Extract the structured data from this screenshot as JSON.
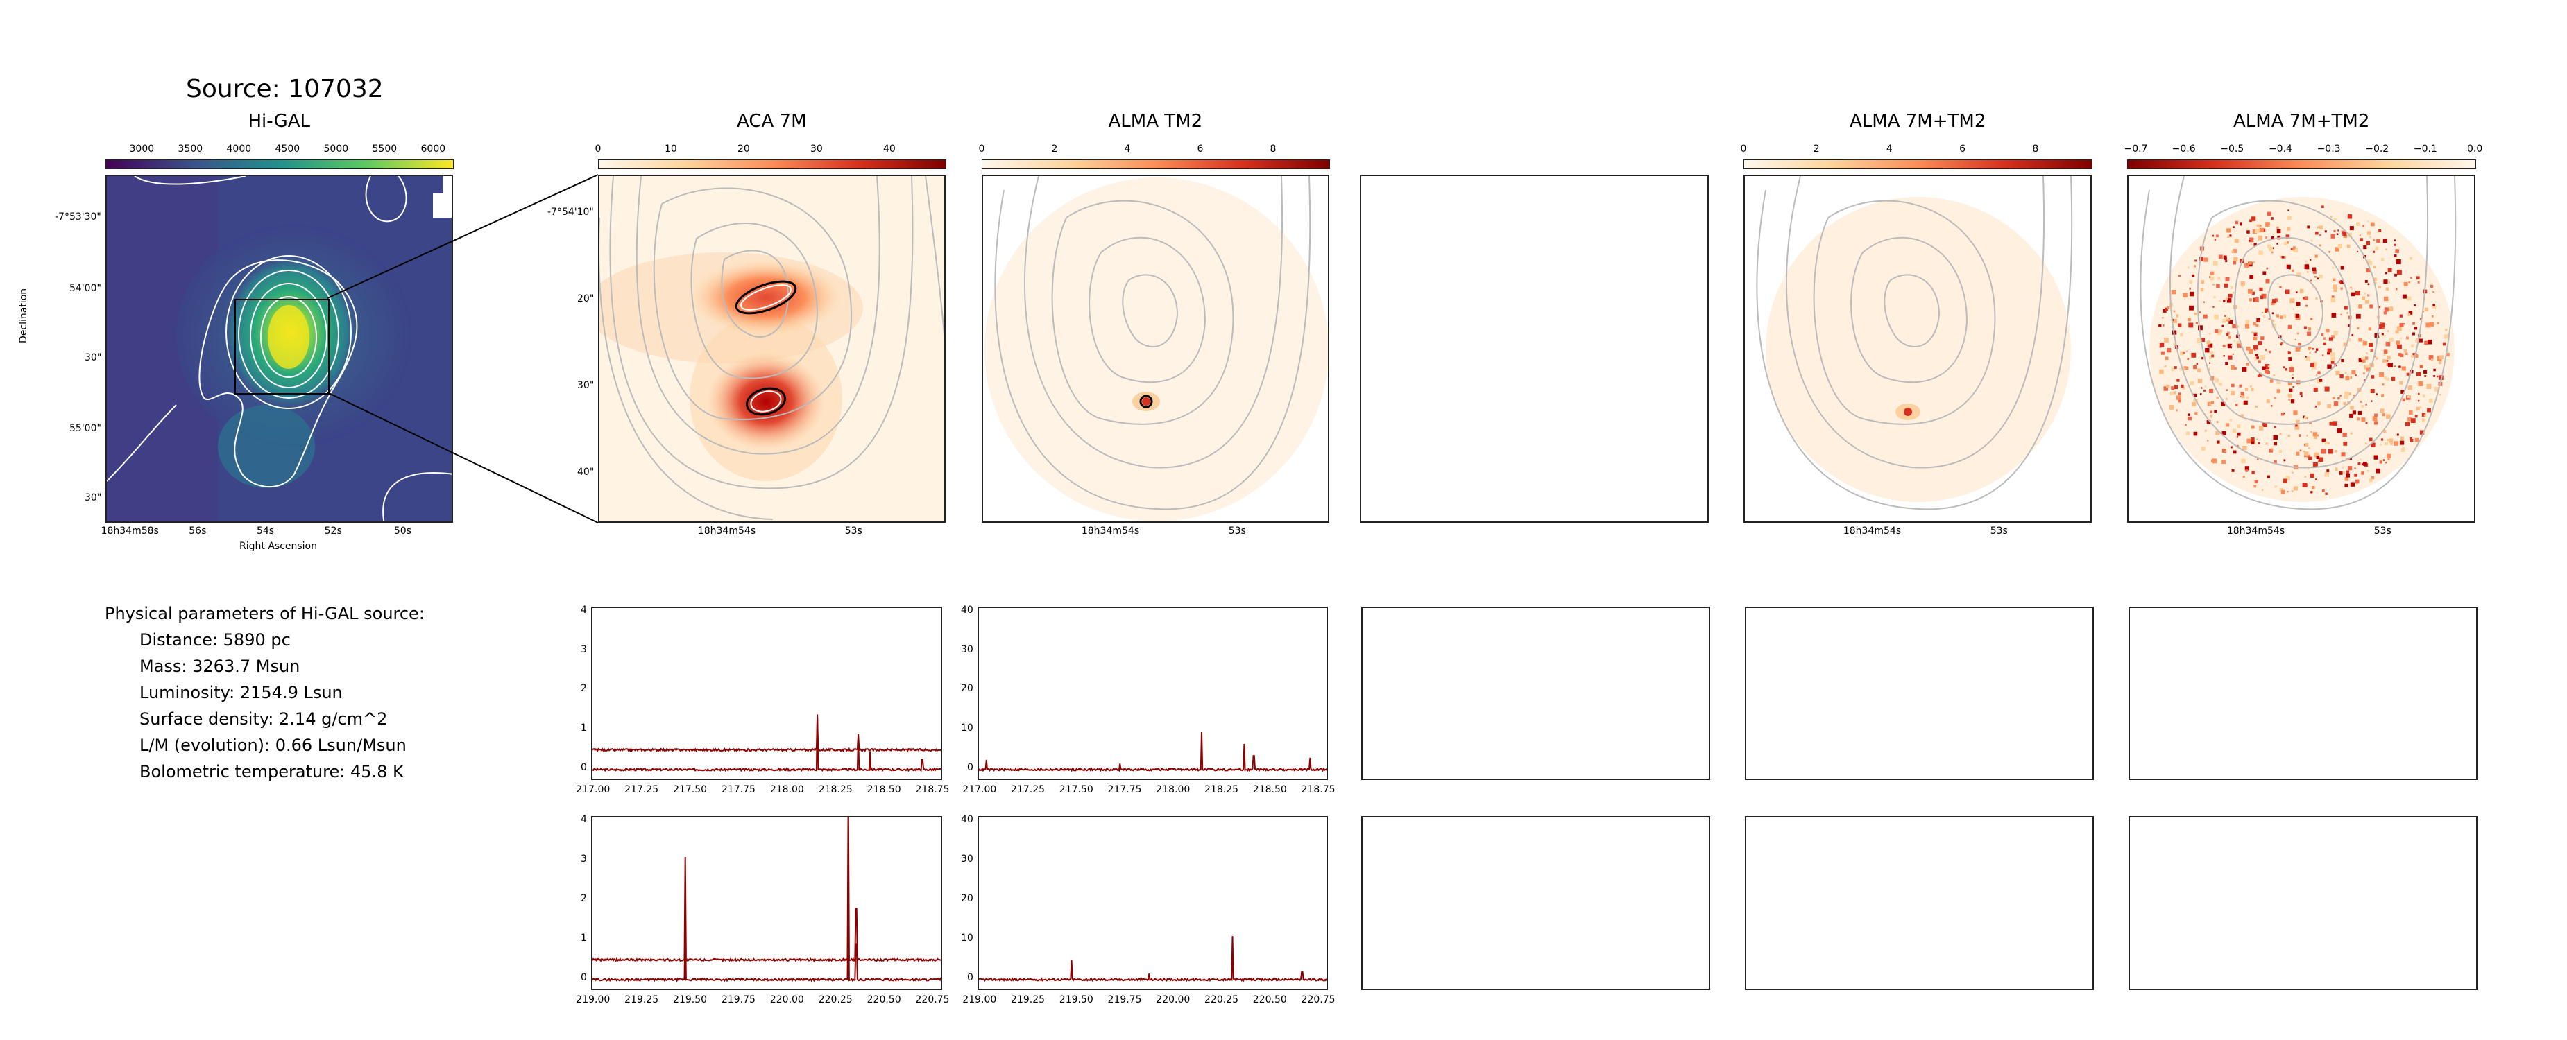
{
  "source_title": "Source: 107032",
  "panels": {
    "higal": {
      "title": "Hi-GAL",
      "cbar_ticks": [
        "3000",
        "3500",
        "4000",
        "4500",
        "5000",
        "5500",
        "6000"
      ],
      "ra_ticks": [
        "18h34m58s",
        "56s",
        "54s",
        "52s",
        "50s"
      ],
      "dec_ticks": [
        "-7°53'30\"",
        "54'00\"",
        "30\"",
        "55'00\"",
        "30\""
      ],
      "xlabel": "Right Ascension",
      "ylabel": "Declination"
    },
    "aca7m": {
      "title": "ACA 7M",
      "cbar_ticks": [
        "0",
        "10",
        "20",
        "30",
        "40"
      ],
      "ra_ticks": [
        "18h34m54s",
        "53s"
      ],
      "dec_ticks": [
        "-7°54'10\"",
        "20\"",
        "30\"",
        "40\""
      ]
    },
    "tm2": {
      "title": "ALMA TM2",
      "cbar_ticks": [
        "0",
        "2",
        "4",
        "6",
        "8"
      ],
      "ra_ticks": [
        "18h34m54s",
        "53s"
      ]
    },
    "comb": {
      "title": "ALMA 7M+TM2",
      "cbar_ticks": [
        "0",
        "2",
        "4",
        "6",
        "8"
      ],
      "ra_ticks": [
        "18h34m54s",
        "53s"
      ]
    },
    "combneg": {
      "title": "ALMA 7M+TM2",
      "cbar_ticks": [
        "−0.7",
        "−0.6",
        "−0.5",
        "−0.4",
        "−0.3",
        "−0.2",
        "−0.1",
        "0.0"
      ],
      "ra_ticks": [
        "18h34m54s",
        "53s"
      ]
    }
  },
  "params": {
    "heading": "Physical parameters of Hi-GAL source:",
    "distance": "Distance: 5890 pc",
    "mass": "Mass: 3263.7 Msun",
    "luminosity": "Luminosity: 2154.9 Lsun",
    "surface_density": "Surface density: 2.14 g/cm^2",
    "lm": "L/M (evolution): 0.66 Lsun/Msun",
    "tbol": "Bolometric temperature: 45.8 K"
  },
  "colors": {
    "spectrum": "#8b0000",
    "frame": "#222222"
  },
  "chart_data": [
    {
      "type": "line",
      "panel": "aca7m-spectrum-upper",
      "x_ticks": [
        "217.00",
        "217.25",
        "217.50",
        "217.75",
        "218.00",
        "218.25",
        "218.50",
        "218.75"
      ],
      "y_ticks": [
        "0",
        "1",
        "2",
        "3",
        "4"
      ],
      "xlim": [
        216.99,
        218.8
      ],
      "ylim": [
        -0.3,
        4.1
      ],
      "series": [
        {
          "baseline": 0.0,
          "peaks": [
            [
              218.15,
              1.4
            ],
            [
              218.36,
              0.85
            ],
            [
              218.42,
              0.45
            ],
            [
              218.69,
              0.25
            ]
          ]
        },
        {
          "baseline": 0.5,
          "peaks": [
            [
              218.15,
              0.85
            ],
            [
              218.36,
              0.4
            ]
          ]
        }
      ]
    },
    {
      "type": "line",
      "panel": "tm2-spectrum-upper",
      "x_ticks": [
        "217.00",
        "217.25",
        "217.50",
        "217.75",
        "218.00",
        "218.25",
        "218.50",
        "218.75"
      ],
      "y_ticks": [
        "0",
        "10",
        "20",
        "30",
        "40"
      ],
      "xlim": [
        216.99,
        218.8
      ],
      "ylim": [
        -3,
        41
      ],
      "series": [
        {
          "baseline": 0.0,
          "peaks": [
            [
              217.03,
              2.5
            ],
            [
              217.72,
              1.5
            ],
            [
              218.14,
              9.5
            ],
            [
              218.36,
              6.5
            ],
            [
              218.41,
              3.5
            ],
            [
              218.7,
              3.0
            ]
          ]
        }
      ]
    },
    {
      "type": "line",
      "panel": "aca7m-spectrum-lower",
      "x_ticks": [
        "219.00",
        "219.25",
        "219.50",
        "219.75",
        "220.00",
        "220.25",
        "220.50",
        "220.75"
      ],
      "y_ticks": [
        "0",
        "1",
        "2",
        "3",
        "4"
      ],
      "xlim": [
        218.99,
        220.8
      ],
      "ylim": [
        -0.3,
        4.1
      ],
      "series": [
        {
          "baseline": 0.0,
          "peaks": [
            [
              219.47,
              1.6
            ],
            [
              220.31,
              2.2
            ],
            [
              220.35,
              0.9
            ]
          ]
        },
        {
          "baseline": 0.5,
          "peaks": [
            [
              219.47,
              2.6
            ],
            [
              220.31,
              4.1
            ],
            [
              220.35,
              1.3
            ]
          ]
        }
      ]
    },
    {
      "type": "line",
      "panel": "tm2-spectrum-lower",
      "x_ticks": [
        "219.00",
        "219.25",
        "219.50",
        "219.75",
        "220.00",
        "220.25",
        "220.50",
        "220.75"
      ],
      "y_ticks": [
        "0",
        "10",
        "20",
        "30",
        "40"
      ],
      "xlim": [
        218.99,
        220.8
      ],
      "ylim": [
        -3,
        41
      ],
      "series": [
        {
          "baseline": 0.0,
          "peaks": [
            [
              219.47,
              5.0
            ],
            [
              219.87,
              1.5
            ],
            [
              220.3,
              11.0
            ],
            [
              220.66,
              2.0
            ]
          ]
        }
      ]
    }
  ]
}
